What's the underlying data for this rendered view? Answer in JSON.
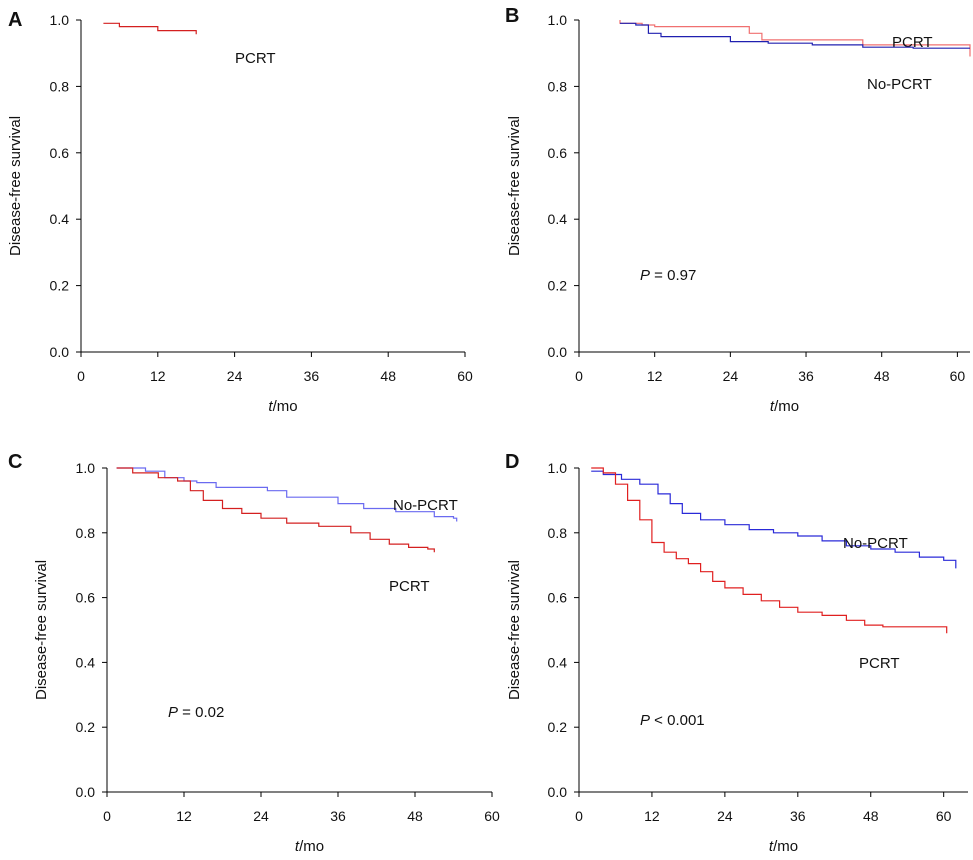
{
  "chart_data": [
    {
      "type": "line",
      "panel": "A",
      "xlabel_italic": "t",
      "xlabel_rest": "/mo",
      "ylabel": "Disease-free survival",
      "xlim": [
        0,
        60
      ],
      "ylim": [
        0,
        1.0
      ],
      "xticks": [
        "0",
        "12",
        "24",
        "36",
        "48",
        "60"
      ],
      "yticks": [
        "0.0",
        "0.2",
        "0.4",
        "0.6",
        "0.8",
        "1.0"
      ],
      "p_italic": "",
      "p_rest": "",
      "series": [
        {
          "name": "PCRT",
          "color": "#d42020",
          "x": [
            3.5,
            6,
            6,
            12,
            12,
            18,
            18
          ],
          "y": [
            0.99,
            0.99,
            0.98,
            0.98,
            0.968,
            0.968,
            0.957
          ]
        }
      ]
    },
    {
      "type": "line",
      "panel": "B",
      "xlabel_italic": "t",
      "xlabel_rest": "/mo",
      "ylabel": "Disease-free survival",
      "xlim": [
        0,
        62
      ],
      "ylim": [
        0,
        1.0
      ],
      "xticks": [
        "0",
        "12",
        "24",
        "36",
        "48",
        "60"
      ],
      "yticks": [
        "0.0",
        "0.2",
        "0.4",
        "0.6",
        "0.8",
        "1.0"
      ],
      "p_italic": "P",
      "p_rest": " = 0.97",
      "series": [
        {
          "name": "PCRT",
          "color": "#f07070",
          "x": [
            6.5,
            6.5,
            8,
            10,
            12,
            26,
            27,
            29,
            33,
            45,
            62,
            62
          ],
          "y": [
            1.0,
            0.99,
            0.99,
            0.985,
            0.98,
            0.98,
            0.96,
            0.94,
            0.94,
            0.925,
            0.92,
            0.89
          ]
        },
        {
          "name": "No-PCRT",
          "color": "#2020b0",
          "x": [
            6.5,
            9,
            11,
            13,
            20,
            24,
            30,
            37,
            45,
            53,
            62
          ],
          "y": [
            0.99,
            0.985,
            0.96,
            0.95,
            0.95,
            0.935,
            0.93,
            0.925,
            0.918,
            0.915,
            0.915
          ]
        }
      ]
    },
    {
      "type": "line",
      "panel": "C",
      "xlabel_italic": "t",
      "xlabel_rest": "/mo",
      "ylabel": "Disease-free survival",
      "xlim": [
        0,
        60
      ],
      "ylim": [
        0,
        1.0
      ],
      "xticks": [
        "0",
        "12",
        "24",
        "36",
        "48",
        "60"
      ],
      "yticks": [
        "0.0",
        "0.2",
        "0.4",
        "0.6",
        "0.8",
        "1.0"
      ],
      "p_italic": "P",
      "p_rest": " = 0.02",
      "series": [
        {
          "name": "No-PCRT",
          "color": "#6a6af0",
          "x": [
            1.5,
            6,
            9,
            12,
            14,
            17,
            25,
            28,
            36,
            40,
            45,
            51,
            54,
            54.5
          ],
          "y": [
            1.0,
            0.99,
            0.97,
            0.96,
            0.955,
            0.94,
            0.93,
            0.91,
            0.89,
            0.875,
            0.865,
            0.85,
            0.845,
            0.835
          ]
        },
        {
          "name": "PCRT",
          "color": "#d42020",
          "x": [
            1.5,
            4,
            8,
            11,
            13,
            15,
            18,
            21,
            24,
            28,
            33,
            38,
            41,
            44,
            47,
            50,
            51
          ],
          "y": [
            1.0,
            0.985,
            0.97,
            0.96,
            0.93,
            0.9,
            0.875,
            0.86,
            0.845,
            0.83,
            0.82,
            0.8,
            0.78,
            0.765,
            0.755,
            0.75,
            0.74
          ]
        }
      ]
    },
    {
      "type": "line",
      "panel": "D",
      "xlabel_italic": "t",
      "xlabel_rest": "/mo",
      "ylabel": "Disease-free survival",
      "xlim": [
        0,
        64
      ],
      "ylim": [
        0,
        1.0
      ],
      "xticks": [
        "0",
        "12",
        "24",
        "36",
        "48",
        "60"
      ],
      "yticks": [
        "0.0",
        "0.2",
        "0.4",
        "0.6",
        "0.8",
        "1.0"
      ],
      "p_italic": "P",
      "p_rest": " < 0.001",
      "series": [
        {
          "name": "No-PCRT",
          "color": "#2a2ad8",
          "x": [
            2,
            4,
            7,
            10,
            13,
            15,
            17,
            20,
            24,
            28,
            32,
            36,
            40,
            44,
            48,
            52,
            56,
            60,
            62
          ],
          "y": [
            0.99,
            0.98,
            0.965,
            0.95,
            0.92,
            0.89,
            0.86,
            0.84,
            0.825,
            0.81,
            0.8,
            0.79,
            0.775,
            0.76,
            0.75,
            0.74,
            0.725,
            0.715,
            0.69
          ]
        },
        {
          "name": "PCRT",
          "color": "#e02020",
          "x": [
            2,
            4,
            6,
            8,
            10,
            12,
            14,
            16,
            18,
            20,
            22,
            24,
            27,
            30,
            33,
            36,
            40,
            44,
            47,
            50,
            55,
            60,
            60.5
          ],
          "y": [
            1.0,
            0.985,
            0.95,
            0.9,
            0.84,
            0.77,
            0.74,
            0.72,
            0.705,
            0.68,
            0.65,
            0.63,
            0.61,
            0.59,
            0.57,
            0.555,
            0.545,
            0.53,
            0.515,
            0.51,
            0.51,
            0.51,
            0.49
          ]
        }
      ]
    }
  ]
}
